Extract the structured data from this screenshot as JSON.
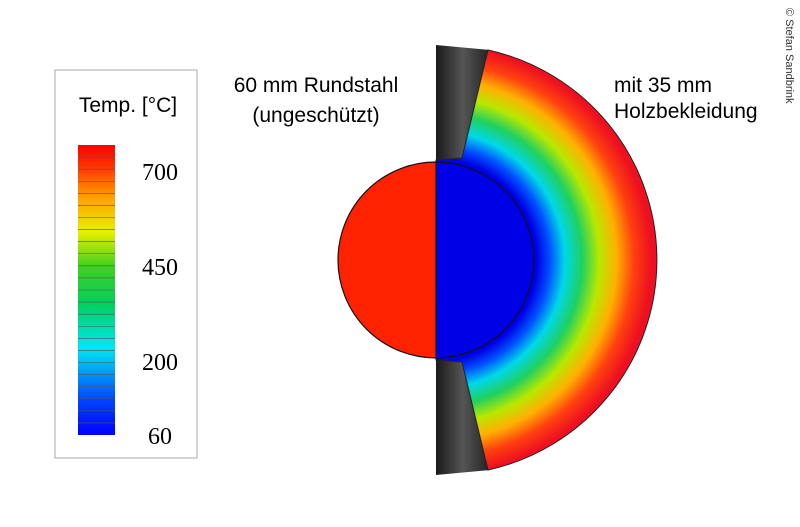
{
  "legend": {
    "title": "Temp. [°C]",
    "ticks": [
      700,
      450,
      200,
      60
    ]
  },
  "left_label": {
    "line1": "60 mm Rundstahl",
    "line2": "(ungeschützt)"
  },
  "right_label": {
    "line1": "mit 35 mm",
    "line2": "Holzbekleidung"
  },
  "credit": "© Stefan Sandbrink"
}
